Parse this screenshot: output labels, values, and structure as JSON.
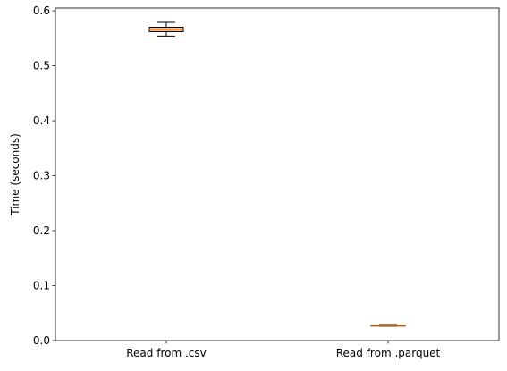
{
  "chart_data": {
    "type": "box",
    "categories": [
      "Read from .csv",
      "Read from .parquet"
    ],
    "boxes": [
      {
        "category": "Read from .csv",
        "whisker_low": 0.554,
        "q1": 0.562,
        "median": 0.566,
        "q3": 0.57,
        "whisker_high": 0.579
      },
      {
        "category": "Read from .parquet",
        "whisker_low": 0.0265,
        "q1": 0.0272,
        "median": 0.0276,
        "q3": 0.0281,
        "whisker_high": 0.0292
      }
    ],
    "title": "",
    "xlabel": "",
    "ylabel": "Time (seconds)",
    "ylim": [
      0.0,
      0.605
    ],
    "yticks": [
      0.0,
      0.1,
      0.2,
      0.3,
      0.4,
      0.5,
      0.6
    ],
    "ytick_labels": [
      "0.0",
      "0.1",
      "0.2",
      "0.3",
      "0.4",
      "0.5",
      "0.6"
    ],
    "grid": false,
    "colors": {
      "box_fill": "#f4c4a0",
      "median": "#ff7f0e",
      "outline": "#000000"
    }
  }
}
